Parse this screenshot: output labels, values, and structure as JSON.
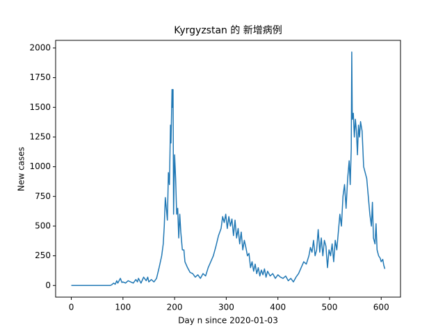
{
  "chart_data": {
    "type": "line",
    "title": "Kyrgyzstan 的 新增病例",
    "xlabel": "Day n since 2020-01-03",
    "ylabel": "New cases",
    "color": "#1f77b4",
    "x": [
      0,
      10,
      20,
      30,
      40,
      50,
      60,
      70,
      75,
      78,
      82,
      85,
      88,
      90,
      95,
      98,
      100,
      105,
      110,
      115,
      120,
      125,
      128,
      130,
      135,
      140,
      145,
      148,
      150,
      155,
      160,
      165,
      170,
      175,
      178,
      180,
      182,
      184,
      186,
      188,
      190,
      192,
      193,
      195,
      196,
      197,
      198,
      200,
      202,
      204,
      206,
      208,
      210,
      212,
      215,
      218,
      220,
      225,
      230,
      235,
      240,
      245,
      250,
      255,
      260,
      265,
      270,
      275,
      280,
      285,
      290,
      293,
      296,
      299,
      302,
      305,
      308,
      311,
      314,
      317,
      320,
      323,
      326,
      329,
      332,
      335,
      338,
      341,
      344,
      347,
      350,
      353,
      356,
      359,
      362,
      365,
      368,
      371,
      374,
      377,
      380,
      385,
      390,
      395,
      400,
      405,
      410,
      415,
      420,
      425,
      430,
      435,
      440,
      445,
      450,
      455,
      460,
      463,
      466,
      469,
      472,
      475,
      478,
      481,
      484,
      487,
      490,
      493,
      496,
      499,
      502,
      505,
      508,
      511,
      514,
      517,
      520,
      523,
      526,
      529,
      532,
      535,
      538,
      540,
      542,
      543,
      544,
      546,
      548,
      550,
      552,
      554,
      556,
      558,
      560,
      563,
      566,
      569,
      572,
      575,
      578,
      581,
      583,
      585,
      588,
      590,
      592,
      595,
      598,
      600,
      603,
      605,
      607
    ],
    "values": [
      0,
      0,
      0,
      0,
      0,
      0,
      0,
      0,
      0,
      5,
      20,
      10,
      40,
      20,
      60,
      25,
      30,
      20,
      40,
      30,
      20,
      50,
      30,
      60,
      20,
      70,
      40,
      70,
      30,
      50,
      30,
      60,
      150,
      250,
      350,
      500,
      740,
      650,
      550,
      950,
      850,
      1350,
      1200,
      1650,
      1500,
      1650,
      600,
      1100,
      900,
      600,
      650,
      400,
      600,
      450,
      300,
      300,
      200,
      150,
      110,
      100,
      70,
      90,
      60,
      100,
      80,
      150,
      200,
      250,
      330,
      420,
      480,
      580,
      530,
      600,
      480,
      580,
      500,
      560,
      420,
      550,
      400,
      480,
      350,
      450,
      300,
      380,
      320,
      250,
      270,
      150,
      200,
      120,
      180,
      100,
      150,
      80,
      130,
      90,
      140,
      70,
      120,
      80,
      100,
      60,
      90,
      70,
      60,
      80,
      40,
      60,
      30,
      70,
      100,
      150,
      200,
      180,
      250,
      320,
      280,
      380,
      250,
      300,
      470,
      280,
      400,
      250,
      380,
      330,
      150,
      300,
      250,
      350,
      200,
      380,
      300,
      450,
      600,
      500,
      750,
      850,
      650,
      900,
      1050,
      850,
      1150,
      1966,
      1400,
      1450,
      1250,
      1400,
      1300,
      1100,
      1350,
      1250,
      1380,
      1300,
      1000,
      950,
      900,
      750,
      600,
      500,
      700,
      400,
      350,
      520,
      300,
      250,
      230,
      200,
      220,
      170,
      140
    ],
    "xlim": [
      -30.35,
      637.35
    ],
    "ylim": [
      -98,
      2064
    ],
    "xticks": [
      0,
      100,
      200,
      300,
      400,
      500,
      600
    ],
    "yticks": [
      0,
      250,
      500,
      750,
      1000,
      1250,
      1500,
      1750,
      2000
    ]
  }
}
